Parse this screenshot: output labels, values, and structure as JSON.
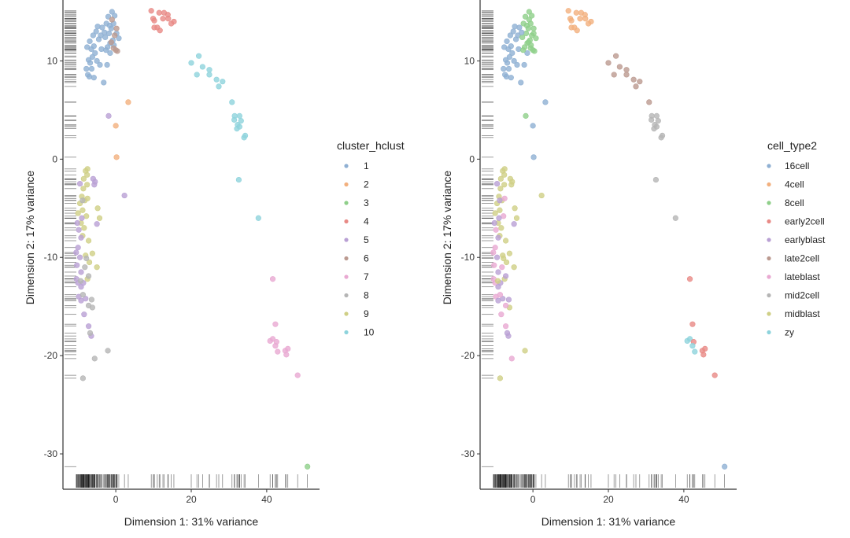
{
  "chart_data": {
    "type": "scatter",
    "xlim": [
      -14,
      54
    ],
    "ylim": [
      -33.6,
      16.2
    ],
    "x_ticks": [
      0,
      20,
      40
    ],
    "y_ticks": [
      -30,
      -20,
      -10,
      0,
      10
    ],
    "grid": false,
    "rug": true,
    "panels": [
      {
        "xlabel": "Dimension 1: 31% variance",
        "ylabel": "Dimension 2: 17% variance",
        "color_by": "cluster",
        "legend_title": "cluster_hclust",
        "legend_position": "right",
        "legend": [
          {
            "label": "1",
            "color": "#8fb0d3"
          },
          {
            "label": "2",
            "color": "#f2b07e"
          },
          {
            "label": "3",
            "color": "#8fcf8a"
          },
          {
            "label": "4",
            "color": "#e88a86"
          },
          {
            "label": "5",
            "color": "#b9a0d4"
          },
          {
            "label": "6",
            "color": "#bb9a90"
          },
          {
            "label": "7",
            "color": "#e9a9d2"
          },
          {
            "label": "8",
            "color": "#b5b5b5"
          },
          {
            "label": "9",
            "color": "#cfcf86"
          },
          {
            "label": "10",
            "color": "#8ed3dc"
          }
        ]
      },
      {
        "xlabel": "Dimension 1: 31% variance",
        "ylabel": "Dimension 2: 17% variance",
        "color_by": "cell_type",
        "legend_title": "cell_type2",
        "legend_position": "right",
        "legend": [
          {
            "label": "16cell",
            "color": "#8fb0d3"
          },
          {
            "label": "4cell",
            "color": "#f2b07e"
          },
          {
            "label": "8cell",
            "color": "#8fcf8a"
          },
          {
            "label": "early2cell",
            "color": "#e88a86"
          },
          {
            "label": "earlyblast",
            "color": "#b9a0d4"
          },
          {
            "label": "late2cell",
            "color": "#bb9a90"
          },
          {
            "label": "lateblast",
            "color": "#e9a9d2"
          },
          {
            "label": "mid2cell",
            "color": "#b5b5b5"
          },
          {
            "label": "midblast",
            "color": "#cfcf86"
          },
          {
            "label": "zy",
            "color": "#8ed3dc"
          }
        ]
      }
    ],
    "points": [
      [
        -7.8,
        9.2,
        "1",
        "16cell"
      ],
      [
        -7.4,
        8.6,
        "1",
        "16cell"
      ],
      [
        -7,
        8.4,
        "1",
        "16cell"
      ],
      [
        -6.8,
        9.8,
        "1",
        "16cell"
      ],
      [
        -6.2,
        10.4,
        "1",
        "16cell"
      ],
      [
        -7.2,
        10.1,
        "1",
        "16cell"
      ],
      [
        -6.5,
        11.2,
        "1",
        "16cell"
      ],
      [
        -5.8,
        11.5,
        "1",
        "16cell"
      ],
      [
        -6.9,
        12,
        "1",
        "16cell"
      ],
      [
        -6,
        12.6,
        "1",
        "16cell"
      ],
      [
        -5.2,
        13,
        "1",
        "16cell"
      ],
      [
        -4.8,
        13.5,
        "1",
        "16cell"
      ],
      [
        -4.5,
        12.2,
        "1",
        "16cell"
      ],
      [
        -5.5,
        10.8,
        "1",
        "16cell"
      ],
      [
        -5,
        10,
        "1",
        "16cell"
      ],
      [
        -4.2,
        9.6,
        "1",
        "16cell"
      ],
      [
        -3.8,
        11.2,
        "1",
        "16cell"
      ],
      [
        -4,
        12.6,
        "1",
        "16cell"
      ],
      [
        -6.4,
        9.2,
        "1",
        "16cell"
      ],
      [
        -5.8,
        8.3,
        "1",
        "16cell"
      ],
      [
        -3.2,
        7.8,
        "1",
        "16cell"
      ],
      [
        -7.6,
        11.4,
        "1",
        "16cell"
      ],
      [
        -3.6,
        13.4,
        "1",
        "16cell"
      ],
      [
        -2.3,
        9.6,
        "1",
        "16cell"
      ],
      [
        -1.5,
        10.8,
        "1",
        "16cell"
      ],
      [
        -2.5,
        13.8,
        "1",
        "8cell"
      ],
      [
        -2,
        14.5,
        "1",
        "8cell"
      ],
      [
        -1,
        15,
        "1",
        "8cell"
      ],
      [
        -0.3,
        14.6,
        "1",
        "8cell"
      ],
      [
        -2.8,
        12.4,
        "1",
        "8cell"
      ],
      [
        -1.8,
        12.8,
        "1",
        "8cell"
      ],
      [
        -1.2,
        13.3,
        "1",
        "8cell"
      ],
      [
        -0.8,
        12.1,
        "1",
        "8cell"
      ],
      [
        0.8,
        12.3,
        "1",
        "8cell"
      ],
      [
        -2.2,
        11.4,
        "1",
        "8cell"
      ],
      [
        -1.5,
        11.8,
        "1",
        "8cell"
      ],
      [
        -0.5,
        11.6,
        "1",
        "8cell"
      ],
      [
        -3,
        12.9,
        "1",
        "16cell"
      ],
      [
        -1.6,
        13.6,
        "1",
        "8cell"
      ],
      [
        -2.6,
        11.1,
        "1",
        "8cell"
      ],
      [
        0.2,
        12.8,
        "1",
        "8cell"
      ],
      [
        -0.6,
        13.8,
        "1",
        "8cell"
      ],
      [
        -1,
        14.2,
        "6",
        "8cell"
      ],
      [
        0.2,
        13.3,
        "6",
        "8cell"
      ],
      [
        -0.3,
        12.6,
        "6",
        "8cell"
      ],
      [
        0,
        11.1,
        "6",
        "8cell"
      ],
      [
        -0.6,
        11.3,
        "6",
        "8cell"
      ],
      [
        0.4,
        11,
        "6",
        "8cell"
      ],
      [
        -1.2,
        11.9,
        "6",
        "8cell"
      ],
      [
        3.3,
        5.8,
        "2",
        "16cell"
      ],
      [
        0,
        3.4,
        "2",
        "16cell"
      ],
      [
        0.2,
        0.2,
        "2",
        "16cell"
      ],
      [
        -1.9,
        4.4,
        "5",
        "8cell"
      ],
      [
        2.3,
        -3.7,
        "5",
        "midblast"
      ],
      [
        9.4,
        15.1,
        "4",
        "4cell"
      ],
      [
        11.5,
        14.9,
        "4",
        "4cell"
      ],
      [
        12.8,
        14.9,
        "4",
        "4cell"
      ],
      [
        13.8,
        14.7,
        "4",
        "4cell"
      ],
      [
        9.9,
        14.3,
        "4",
        "4cell"
      ],
      [
        10.2,
        14.1,
        "4",
        "4cell"
      ],
      [
        12.5,
        14.3,
        "4",
        "4cell"
      ],
      [
        13.9,
        14.3,
        "4",
        "4cell"
      ],
      [
        15.4,
        14,
        "4",
        "4cell"
      ],
      [
        14.7,
        13.8,
        "4",
        "4cell"
      ],
      [
        10.2,
        13.4,
        "4",
        "4cell"
      ],
      [
        11,
        13.4,
        "4",
        "4cell"
      ],
      [
        11.7,
        13.1,
        "4",
        "4cell"
      ],
      [
        20,
        9.8,
        "10",
        "late2cell"
      ],
      [
        22,
        10.5,
        "10",
        "late2cell"
      ],
      [
        23,
        9.4,
        "10",
        "late2cell"
      ],
      [
        21.5,
        8.6,
        "10",
        "late2cell"
      ],
      [
        24.8,
        9.1,
        "10",
        "late2cell"
      ],
      [
        24.8,
        8.6,
        "10",
        "late2cell"
      ],
      [
        26.7,
        8.1,
        "10",
        "late2cell"
      ],
      [
        28.3,
        7.9,
        "10",
        "late2cell"
      ],
      [
        27.3,
        7.4,
        "10",
        "late2cell"
      ],
      [
        30.8,
        5.8,
        "10",
        "late2cell"
      ],
      [
        31.5,
        4.4,
        "10",
        "mid2cell"
      ],
      [
        32.8,
        4.4,
        "10",
        "mid2cell"
      ],
      [
        31.4,
        4,
        "10",
        "mid2cell"
      ],
      [
        33.2,
        3.9,
        "10",
        "mid2cell"
      ],
      [
        32.3,
        3.5,
        "10",
        "mid2cell"
      ],
      [
        32.1,
        3.1,
        "10",
        "mid2cell"
      ],
      [
        32.8,
        3.3,
        "10",
        "mid2cell"
      ],
      [
        34.3,
        2.4,
        "10",
        "mid2cell"
      ],
      [
        34,
        2.2,
        "10",
        "mid2cell"
      ],
      [
        32.6,
        -2.1,
        "10",
        "mid2cell"
      ],
      [
        37.8,
        -6,
        "10",
        "mid2cell"
      ],
      [
        41.6,
        -12.2,
        "7",
        "early2cell"
      ],
      [
        42.3,
        -16.8,
        "7",
        "early2cell"
      ],
      [
        40.9,
        -18.5,
        "7",
        "zy"
      ],
      [
        41.6,
        -18.3,
        "7",
        "zy"
      ],
      [
        42.6,
        -18.6,
        "7",
        "early2cell"
      ],
      [
        42.3,
        -19,
        "7",
        "zy"
      ],
      [
        42.9,
        -19.6,
        "7",
        "zy"
      ],
      [
        45.6,
        -19.3,
        "7",
        "early2cell"
      ],
      [
        44.9,
        -19.5,
        "7",
        "early2cell"
      ],
      [
        45.2,
        -19.9,
        "7",
        "early2cell"
      ],
      [
        48.2,
        -22,
        "7",
        "early2cell"
      ],
      [
        50.8,
        -31.3,
        "3",
        "16cell"
      ],
      [
        -8,
        -1.2,
        "9",
        "midblast"
      ],
      [
        -7.5,
        -1,
        "9",
        "midblast"
      ],
      [
        -7.6,
        -1.6,
        "9",
        "midblast"
      ],
      [
        -8.5,
        -2,
        "9",
        "midblast"
      ],
      [
        -7.6,
        -2.6,
        "9",
        "midblast"
      ],
      [
        -8.6,
        -3,
        "9",
        "midblast"
      ],
      [
        -9,
        -3.8,
        "9",
        "midblast"
      ],
      [
        -8.2,
        -4.2,
        "9",
        "midblast"
      ],
      [
        -7.5,
        -4,
        "9",
        "lateblast"
      ],
      [
        -9.5,
        -4.5,
        "9",
        "midblast"
      ],
      [
        -8.8,
        -5.2,
        "9",
        "midblast"
      ],
      [
        -10,
        -5.5,
        "9",
        "midblast"
      ],
      [
        -7.8,
        -5.8,
        "9",
        "lateblast"
      ],
      [
        -9.2,
        -6.5,
        "9",
        "midblast"
      ],
      [
        -8.4,
        -7,
        "9",
        "midblast"
      ],
      [
        -8.8,
        -7.8,
        "9",
        "midblast"
      ],
      [
        -7.2,
        -8.3,
        "9",
        "midblast"
      ],
      [
        -8,
        -9.8,
        "9",
        "midblast"
      ],
      [
        -7.5,
        -12.2,
        "9",
        "midblast"
      ],
      [
        -5,
        -11,
        "9",
        "midblast"
      ],
      [
        -4.3,
        -6,
        "9",
        "midblast"
      ],
      [
        -4.8,
        -5,
        "9",
        "midblast"
      ],
      [
        -6.2,
        -9.6,
        "9",
        "midblast"
      ],
      [
        -7,
        -10.5,
        "9",
        "midblast"
      ],
      [
        -9.5,
        -2.5,
        "5",
        "earlyblast"
      ],
      [
        -6,
        -2,
        "5",
        "midblast"
      ],
      [
        -5.5,
        -2.3,
        "5",
        "midblast"
      ],
      [
        -5.7,
        -2.6,
        "5",
        "midblast"
      ],
      [
        -9,
        -6,
        "5",
        "earlyblast"
      ],
      [
        -10.2,
        -6.5,
        "5",
        "earlyblast"
      ],
      [
        -9.8,
        -7.2,
        "5",
        "lateblast"
      ],
      [
        -9.2,
        -8,
        "5",
        "earlyblast"
      ],
      [
        -10,
        -9,
        "5",
        "lateblast"
      ],
      [
        -10.5,
        -9.5,
        "5",
        "lateblast"
      ],
      [
        -9.5,
        -10,
        "5",
        "earlyblast"
      ],
      [
        -10.3,
        -10.8,
        "5",
        "lateblast"
      ],
      [
        -9.2,
        -11.5,
        "5",
        "earlyblast"
      ],
      [
        -10.4,
        -12.2,
        "5",
        "lateblast"
      ],
      [
        -10,
        -12.6,
        "5",
        "lateblast"
      ],
      [
        -9.2,
        -13,
        "5",
        "earlyblast"
      ],
      [
        -9.8,
        -14,
        "5",
        "lateblast"
      ],
      [
        -9.2,
        -14.4,
        "5",
        "earlyblast"
      ],
      [
        -8.4,
        -15.8,
        "5",
        "lateblast"
      ],
      [
        -8,
        -14.2,
        "5",
        "earlyblast"
      ],
      [
        -7.2,
        -17,
        "5",
        "lateblast"
      ],
      [
        -6.5,
        -18,
        "5",
        "earlyblast"
      ],
      [
        -5,
        -6.6,
        "5",
        "earlyblast"
      ],
      [
        -8.6,
        -12.6,
        "5",
        "earlyblast"
      ],
      [
        -8.8,
        -4.2,
        "8",
        "earlyblast"
      ],
      [
        -7.8,
        -10.1,
        "8",
        "midblast"
      ],
      [
        -8.2,
        -11,
        "8",
        "lateblast"
      ],
      [
        -9.3,
        -12.4,
        "8",
        "midblast"
      ],
      [
        -7.2,
        -11.9,
        "8",
        "earlyblast"
      ],
      [
        -8.7,
        -13.8,
        "8",
        "lateblast"
      ],
      [
        -6.4,
        -14.3,
        "8",
        "earlyblast"
      ],
      [
        -6.2,
        -15.1,
        "8",
        "midblast"
      ],
      [
        -7.2,
        -14.9,
        "8",
        "lateblast"
      ],
      [
        -6.8,
        -17.7,
        "8",
        "earlyblast"
      ],
      [
        -2.1,
        -19.5,
        "8",
        "midblast"
      ],
      [
        -5.6,
        -20.3,
        "8",
        "lateblast"
      ],
      [
        -8.7,
        -22.3,
        "8",
        "midblast"
      ]
    ]
  }
}
